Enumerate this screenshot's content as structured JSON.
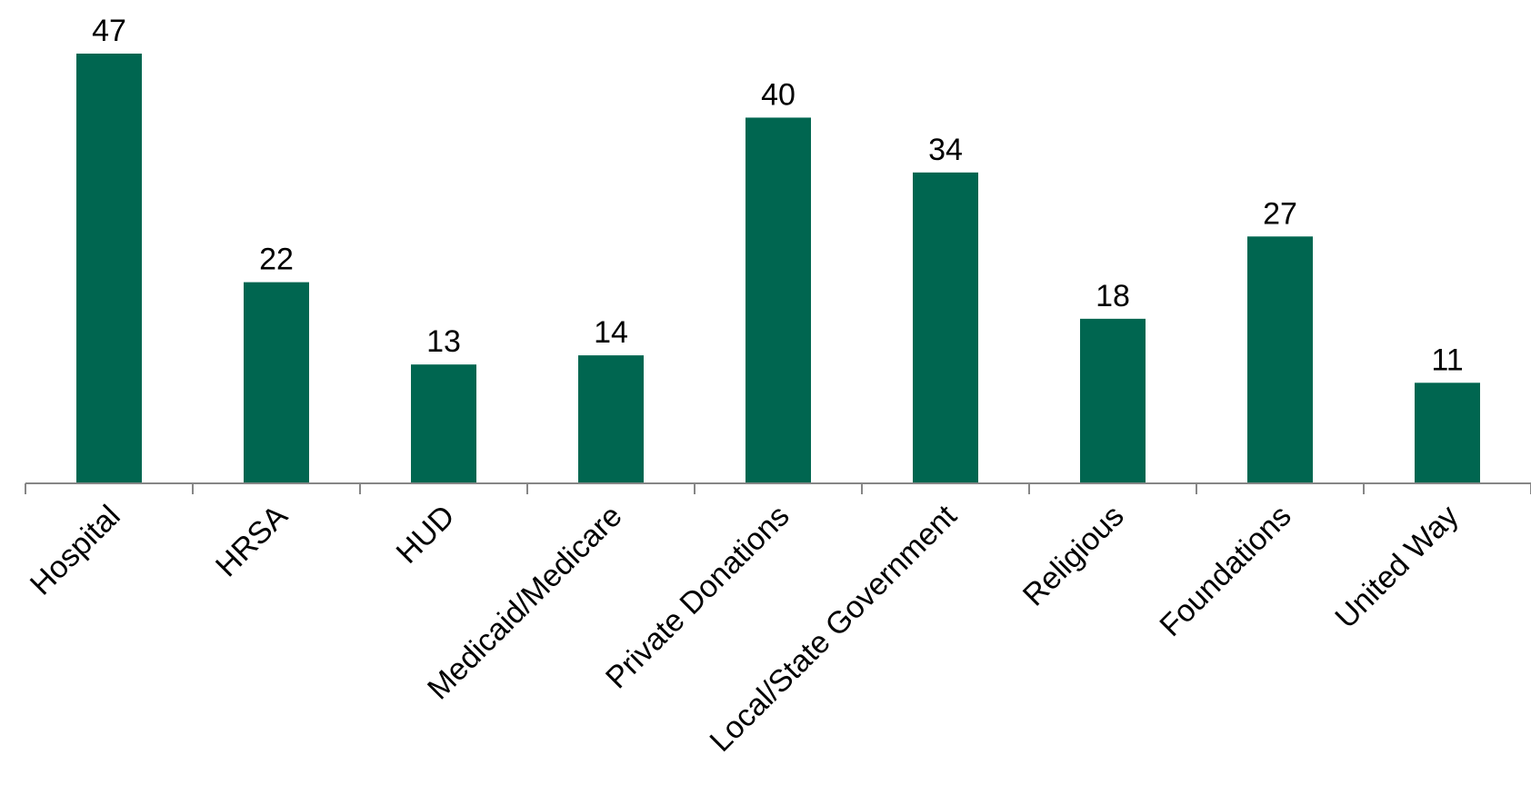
{
  "chart_data": {
    "type": "bar",
    "title": "",
    "xlabel": "",
    "ylabel": "",
    "categories": [
      "Hospital",
      "HRSA",
      "HUD",
      "Medicaid/Medicare",
      "Private Donations",
      "Local/State Government",
      "Religious",
      "Foundations",
      "United Way"
    ],
    "values": [
      47,
      22,
      13,
      14,
      40,
      34,
      18,
      27,
      11
    ],
    "ylim": [
      0,
      47
    ],
    "grid": false,
    "legend": "none",
    "data_labels": true,
    "bar_color": "#006650",
    "axis_color": "#868686"
  }
}
